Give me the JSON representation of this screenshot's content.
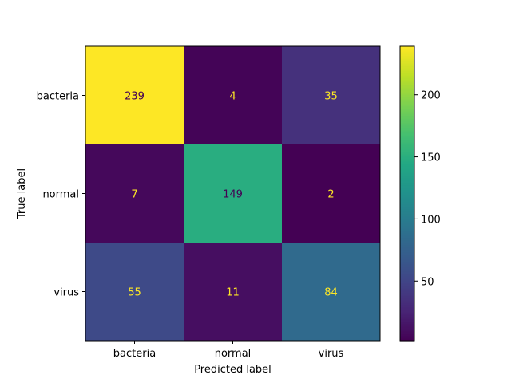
{
  "chart_data": {
    "type": "heatmap",
    "title": "",
    "xlabel": "Predicted label",
    "ylabel": "True label",
    "x_categories": [
      "bacteria",
      "normal",
      "virus"
    ],
    "y_categories": [
      "bacteria",
      "normal",
      "virus"
    ],
    "values": [
      [
        239,
        4,
        35
      ],
      [
        7,
        149,
        2
      ],
      [
        55,
        11,
        84
      ]
    ],
    "colormap": "viridis",
    "vmin": 2,
    "vmax": 239,
    "colorbar_ticks": [
      50,
      100,
      150,
      200
    ],
    "colorbar_tick_labels": [
      "50",
      "100",
      "150",
      "200"
    ],
    "text_colors": {
      "dark": "#440154",
      "light": "#fde725"
    },
    "grid": false
  }
}
